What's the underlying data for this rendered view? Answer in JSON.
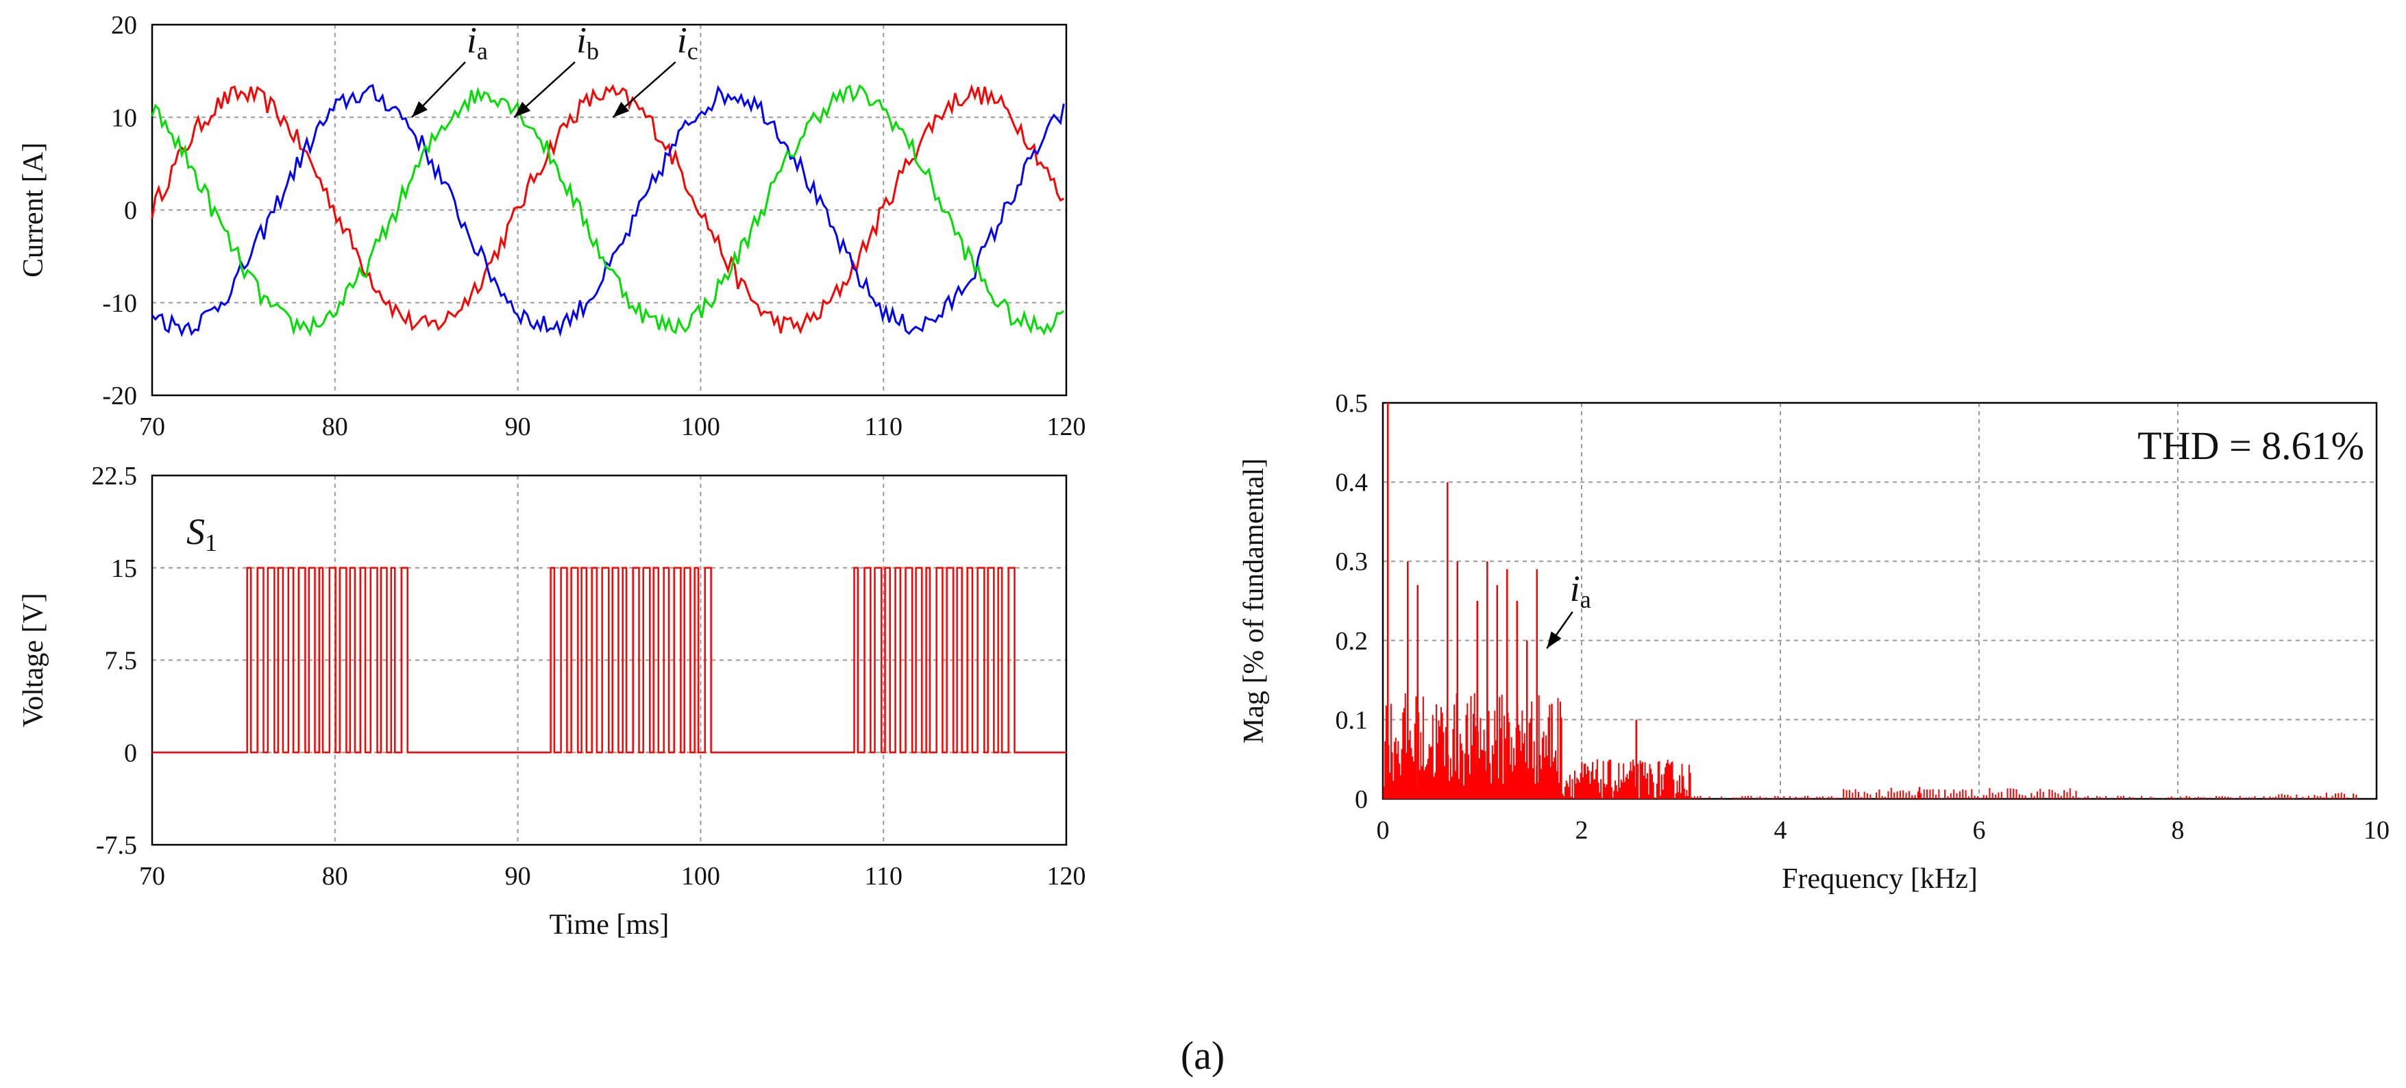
{
  "caption": "(a)",
  "chart_data": [
    {
      "id": "current",
      "type": "line",
      "xlim": [
        70,
        120
      ],
      "ylim": [
        -20,
        20
      ],
      "xticks": [
        "70",
        "80",
        "90",
        "100",
        "110",
        "120"
      ],
      "yticks": [
        "20",
        "10",
        "0",
        "-10",
        "-20"
      ],
      "xlabel": "",
      "ylabel": "Current [A]",
      "grid": true,
      "period_ms": 20,
      "series": [
        {
          "name": "ia",
          "italic": "i",
          "sub": "a",
          "color": "#ff0000",
          "amplitude": 12.5,
          "phase_deg": 0
        },
        {
          "name": "ib",
          "italic": "i",
          "sub": "b",
          "color": "#0000ff",
          "amplitude": 12.5,
          "phase_deg": 120
        },
        {
          "name": "ic",
          "italic": "i",
          "sub": "c",
          "color": "#00dd00",
          "amplitude": 12.5,
          "phase_deg": 240
        }
      ],
      "annotations": [
        {
          "series": "ia",
          "arrow_tip": [
            84.2,
            10
          ],
          "label_at": [
            87.5,
            17
          ]
        },
        {
          "series": "ib",
          "arrow_tip": [
            89.8,
            10
          ],
          "label_at": [
            93.5,
            17
          ]
        },
        {
          "series": "ic",
          "arrow_tip": [
            95.2,
            10
          ],
          "label_at": [
            99.0,
            17
          ]
        }
      ]
    },
    {
      "id": "voltage",
      "type": "line",
      "xlim": [
        70,
        120
      ],
      "ylim": [
        -7.5,
        22.5
      ],
      "xticks": [
        "70",
        "80",
        "90",
        "100",
        "110",
        "120"
      ],
      "yticks": [
        "22.5",
        "15",
        "7.5",
        "0",
        "-7.5"
      ],
      "xlabel": "Time [ms]",
      "ylabel": "Voltage [V]",
      "grid": true,
      "label": {
        "italic": "S",
        "sub": "1"
      },
      "series": [
        {
          "name": "S1",
          "color": "#ff0000",
          "high": 15,
          "low": 0,
          "bursts": [
            [
              75.2,
              84.2
            ],
            [
              91.8,
              100.8
            ],
            [
              108.4,
              117.4
            ]
          ]
        }
      ]
    },
    {
      "id": "spectrum",
      "type": "bar",
      "xlim": [
        0,
        10
      ],
      "ylim": [
        0,
        0.5
      ],
      "xticks": [
        "0",
        "2",
        "4",
        "6",
        "8",
        "10"
      ],
      "yticks": [
        "0.5",
        "0.4",
        "0.3",
        "0.2",
        "0.1",
        "0"
      ],
      "xlabel": "Frequency [kHz]",
      "ylabel": "Mag [% of fundamental]",
      "grid": true,
      "thd_label": "THD = 8.61%",
      "annotation": {
        "italic": "i",
        "sub": "a",
        "arrow_tip": [
          1.65,
          0.19
        ],
        "label_at": [
          1.95,
          0.25
        ]
      },
      "color": "#ff0000",
      "harmonics": [
        {
          "f": 0.05,
          "mag": 0.5
        },
        {
          "f": 0.25,
          "mag": 0.3
        },
        {
          "f": 0.35,
          "mag": 0.27
        },
        {
          "f": 0.65,
          "mag": 0.4
        },
        {
          "f": 0.75,
          "mag": 0.3
        },
        {
          "f": 0.95,
          "mag": 0.25
        },
        {
          "f": 1.05,
          "mag": 0.3
        },
        {
          "f": 1.15,
          "mag": 0.27
        },
        {
          "f": 1.25,
          "mag": 0.29
        },
        {
          "f": 1.35,
          "mag": 0.25
        },
        {
          "f": 1.45,
          "mag": 0.2
        },
        {
          "f": 1.55,
          "mag": 0.29
        },
        {
          "f": 1.7,
          "mag": 0.12
        },
        {
          "f": 2.55,
          "mag": 0.1
        },
        {
          "f": 5.4,
          "mag": 0.015
        }
      ]
    }
  ]
}
